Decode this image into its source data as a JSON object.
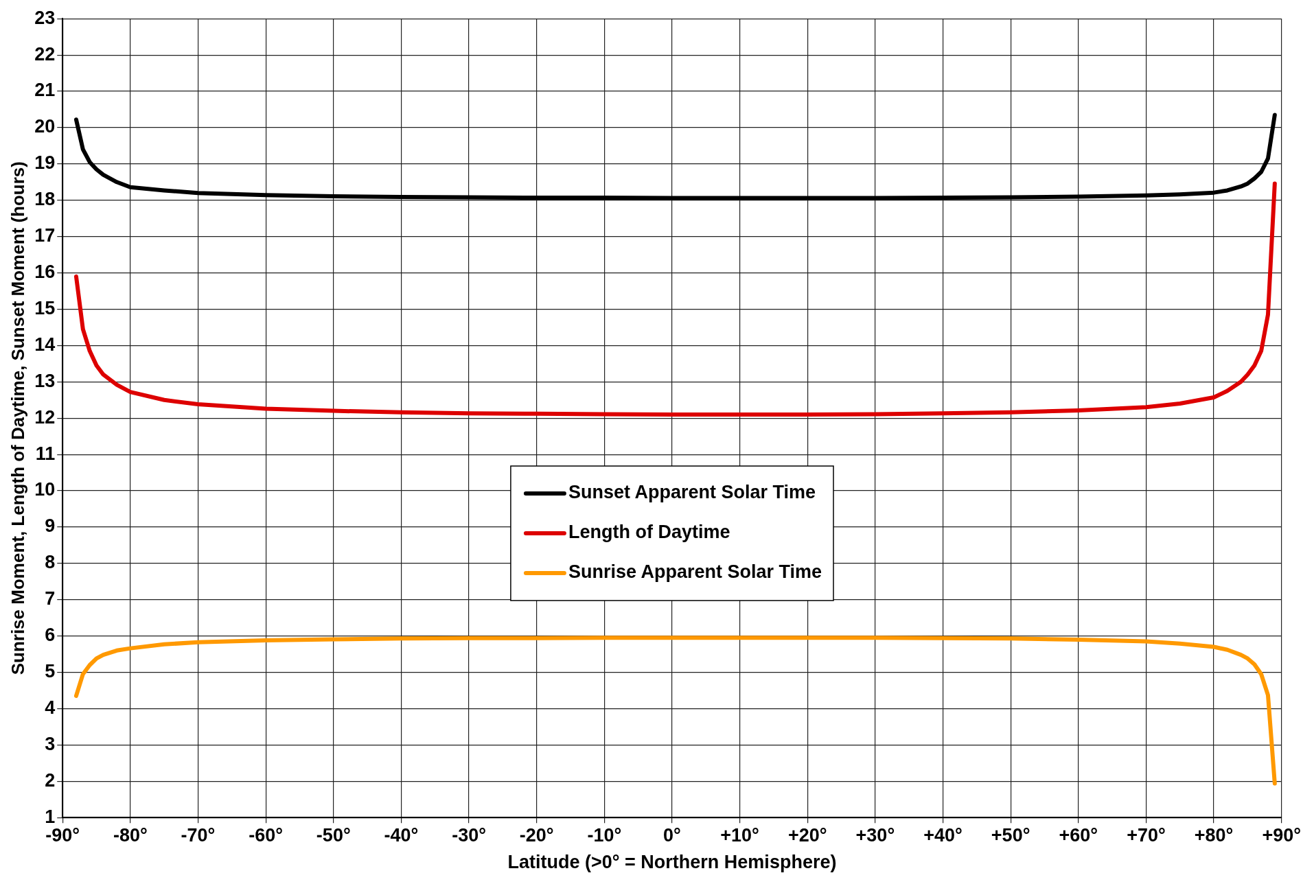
{
  "chart_data": {
    "type": "line",
    "xlabel": "Latitude (>0° = Northern Hemisphere)",
    "ylabel": "Sunrise Moment, Length of Daytime, Sunset Moment (hours)",
    "x": [
      -88,
      -87,
      -86,
      -85,
      -84,
      -82,
      -80,
      -75,
      -70,
      -60,
      -50,
      -40,
      -30,
      -20,
      -10,
      0,
      10,
      20,
      30,
      40,
      50,
      60,
      70,
      75,
      80,
      82,
      84,
      85,
      86,
      87,
      88,
      89
    ],
    "series": [
      {
        "name": "Sunset Apparent Solar Time",
        "color": "#000000",
        "values": [
          20.22,
          19.4,
          19.05,
          18.85,
          18.7,
          18.5,
          18.36,
          18.27,
          18.2,
          18.14,
          18.11,
          18.09,
          18.08,
          18.07,
          18.07,
          18.06,
          18.06,
          18.06,
          18.06,
          18.07,
          18.08,
          18.1,
          18.13,
          18.16,
          18.21,
          18.27,
          18.38,
          18.46,
          18.6,
          18.78,
          19.15,
          20.35
        ]
      },
      {
        "name": "Length of Daytime",
        "color": "#dd0000",
        "values": [
          15.9,
          14.45,
          13.85,
          13.45,
          13.2,
          12.92,
          12.72,
          12.5,
          12.38,
          12.26,
          12.2,
          12.16,
          12.13,
          12.12,
          12.11,
          12.1,
          12.1,
          12.1,
          12.11,
          12.13,
          12.16,
          12.21,
          12.3,
          12.4,
          12.57,
          12.75,
          13.0,
          13.2,
          13.45,
          13.85,
          14.85,
          18.46
        ]
      },
      {
        "name": "Sunrise Apparent Solar Time",
        "color": "#ff9900",
        "values": [
          4.35,
          4.95,
          5.2,
          5.38,
          5.48,
          5.6,
          5.66,
          5.77,
          5.83,
          5.88,
          5.91,
          5.93,
          5.94,
          5.94,
          5.95,
          5.95,
          5.95,
          5.95,
          5.95,
          5.94,
          5.93,
          5.9,
          5.85,
          5.79,
          5.7,
          5.62,
          5.48,
          5.38,
          5.22,
          4.95,
          4.37,
          1.94
        ]
      }
    ],
    "xlim": [
      -90,
      90
    ],
    "xticks": [
      {
        "value": -90,
        "label": "-90°"
      },
      {
        "value": -80,
        "label": "-80°"
      },
      {
        "value": -70,
        "label": "-70°"
      },
      {
        "value": -60,
        "label": "-60°"
      },
      {
        "value": -50,
        "label": "-50°"
      },
      {
        "value": -40,
        "label": "-40°"
      },
      {
        "value": -30,
        "label": "-30°"
      },
      {
        "value": -20,
        "label": "-20°"
      },
      {
        "value": -10,
        "label": "-10°"
      },
      {
        "value": 0,
        "label": "0°"
      },
      {
        "value": 10,
        "label": "+10°"
      },
      {
        "value": 20,
        "label": "+20°"
      },
      {
        "value": 30,
        "label": "+30°"
      },
      {
        "value": 40,
        "label": "+40°"
      },
      {
        "value": 50,
        "label": "+50°"
      },
      {
        "value": 60,
        "label": "+60°"
      },
      {
        "value": 70,
        "label": "+70°"
      },
      {
        "value": 80,
        "label": "+80°"
      },
      {
        "value": 90,
        "label": "+90°"
      }
    ],
    "ylim": [
      1,
      23
    ],
    "yticks": [
      1,
      2,
      3,
      4,
      5,
      6,
      7,
      8,
      9,
      10,
      11,
      12,
      13,
      14,
      15,
      16,
      17,
      18,
      19,
      20,
      21,
      22,
      23
    ],
    "grid": true,
    "legend": "center",
    "marker": "none",
    "line_style": "solid"
  }
}
